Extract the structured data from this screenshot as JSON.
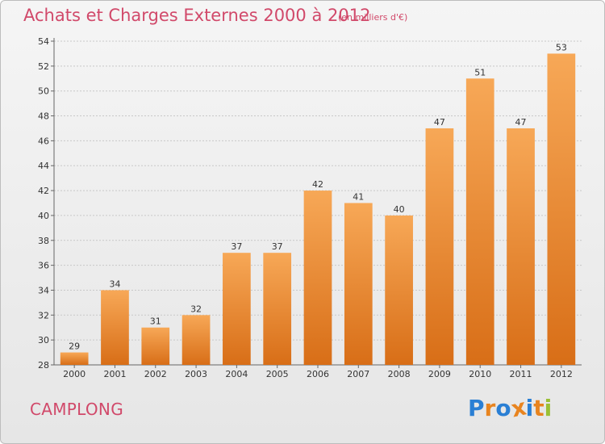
{
  "header": {
    "title": "Achats et Charges Externes 2000 à 2012",
    "unit": "(en milliers d'€)"
  },
  "footer": {
    "commune": "CAMPLONG",
    "logo": {
      "text": "Proxiti",
      "letter_colors": [
        "#2a7fd4",
        "#e8841f",
        "#2a7fd4",
        "#e8841f",
        "#2a7fd4",
        "#e8841f",
        "#9ac035"
      ]
    }
  },
  "colors": {
    "bar_light": "#f7a857",
    "bar_dark": "#d86e17",
    "text": "#333333",
    "accent": "#d1496a",
    "grid": "#c8c8c8"
  },
  "chart_data": {
    "type": "bar",
    "categories": [
      "2000",
      "2001",
      "2002",
      "2003",
      "2004",
      "2005",
      "2006",
      "2007",
      "2008",
      "2009",
      "2010",
      "2011",
      "2012"
    ],
    "values": [
      29,
      34,
      31,
      32,
      37,
      37,
      42,
      41,
      40,
      47,
      51,
      47,
      53
    ],
    "ylim": [
      28,
      54
    ],
    "yticks": [
      28,
      30,
      32,
      34,
      36,
      38,
      40,
      42,
      44,
      46,
      48,
      50,
      52,
      54
    ],
    "grid": true,
    "data_labels": true
  }
}
